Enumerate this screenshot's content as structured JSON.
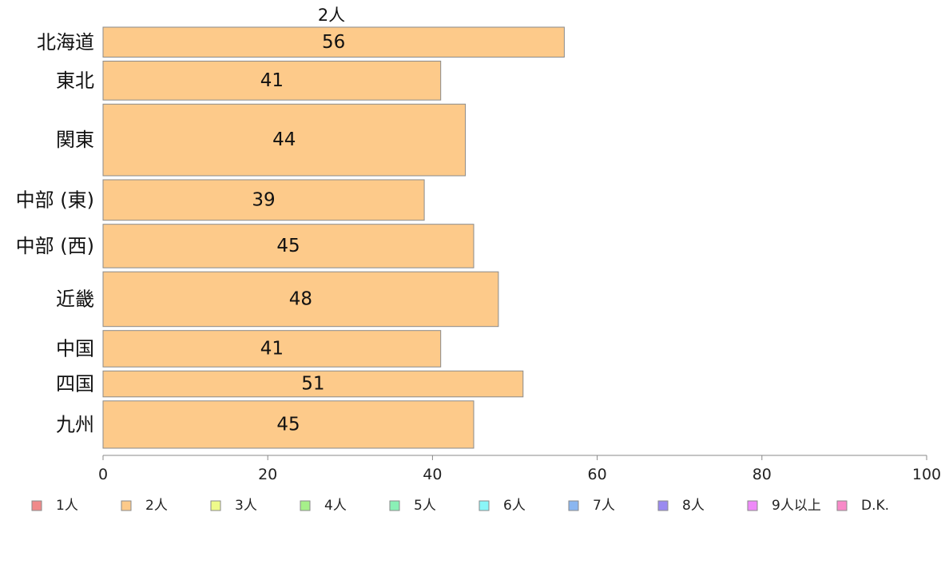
{
  "chart_data": {
    "type": "bar",
    "orientation": "horizontal",
    "title": "2人",
    "categories": [
      "北海道",
      "東北",
      "関東",
      "中部 (東)",
      "中部 (西)",
      "近畿",
      "中国",
      "四国",
      "九州"
    ],
    "series": [
      {
        "name": "2人",
        "values": [
          56,
          41,
          44,
          39,
          45,
          48,
          41,
          51,
          45
        ],
        "color": "#fdca8a"
      }
    ],
    "band_weights": [
      0.97,
      1.26,
      2.32,
      1.31,
      1.41,
      1.77,
      1.18,
      0.84,
      1.53
    ],
    "xlim": [
      0,
      100
    ],
    "xticks": [
      0,
      20,
      40,
      60,
      80,
      100
    ],
    "xlabel": "",
    "ylabel": "",
    "grid": false,
    "legend_position": "bottom",
    "legend": [
      {
        "label": "1人",
        "color": "#f08a8a"
      },
      {
        "label": "2人",
        "color": "#fdca8a"
      },
      {
        "label": "3人",
        "color": "#eefa8a"
      },
      {
        "label": "4人",
        "color": "#a6f08a"
      },
      {
        "label": "5人",
        "color": "#8af0b6"
      },
      {
        "label": "6人",
        "color": "#8af6f8"
      },
      {
        "label": "7人",
        "color": "#8ab6f0"
      },
      {
        "label": "8人",
        "color": "#9a8af0"
      },
      {
        "label": "9人以上",
        "color": "#ee8af8"
      },
      {
        "label": "D.K.",
        "color": "#f88ac8"
      }
    ],
    "bar_border_color": "#8a8a8a",
    "axis_color": "#888888"
  }
}
